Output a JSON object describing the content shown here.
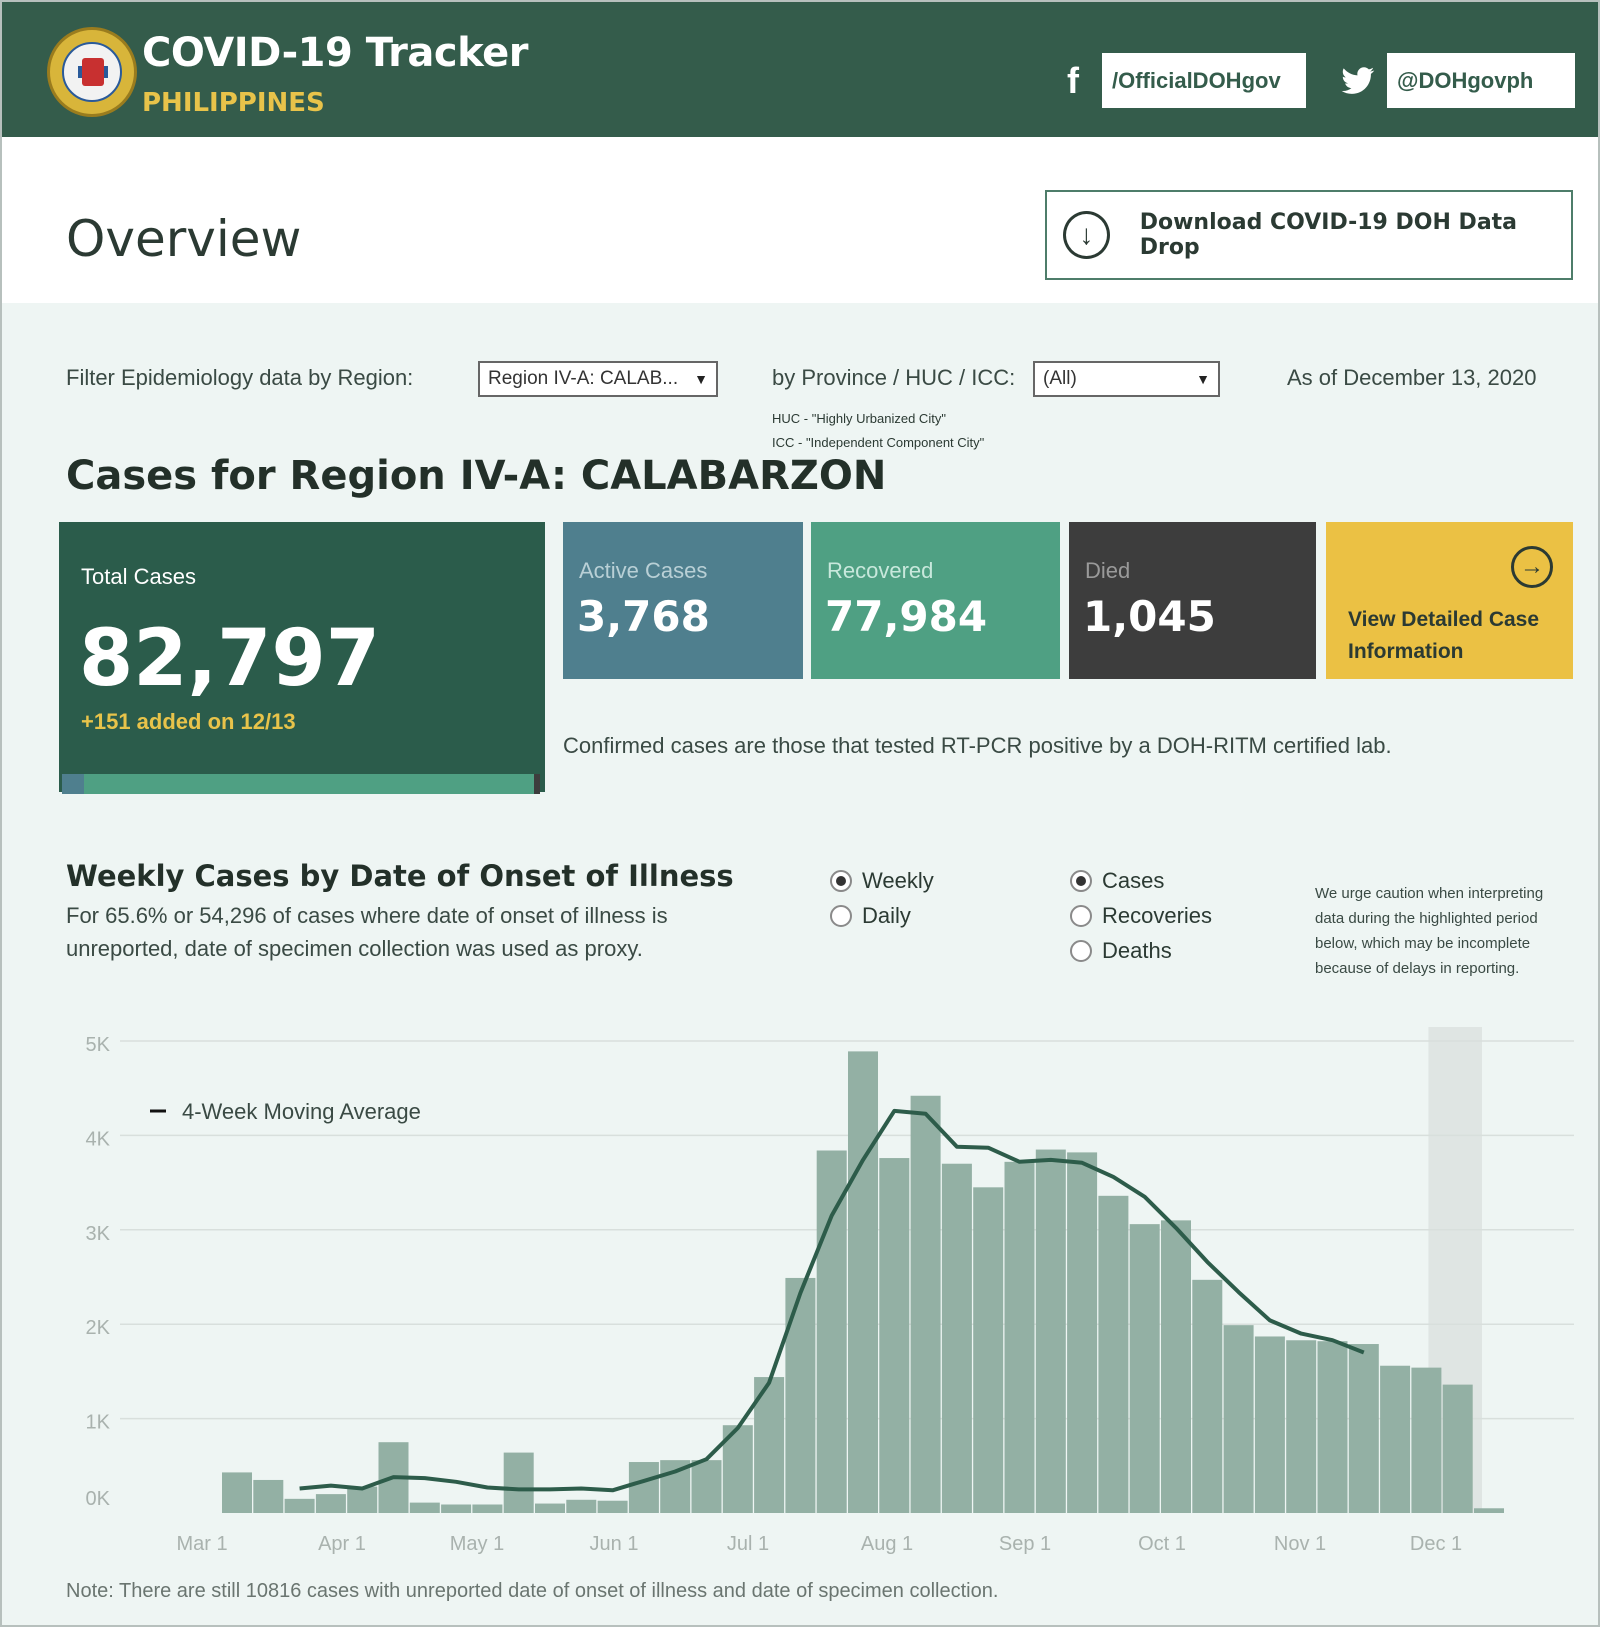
{
  "header": {
    "title": "COVID-19 Tracker",
    "subtitle": "PHILIPPINES",
    "facebook_label": "/OfficialDOHgov",
    "twitter_label": "@DOHgovph"
  },
  "overview": {
    "title": "Overview",
    "download_label": "Download COVID-19 DOH Data Drop"
  },
  "filters": {
    "region_label": "Filter Epidemiology data by Region:",
    "region_value": "Region IV-A: CALAB...",
    "province_label": "by Province / HUC / ICC:",
    "province_value": "(All)",
    "huc_note": "HUC - \"Highly Urbanized City\"",
    "icc_note": "ICC - \"Independent Component City\"",
    "as_of": "As of December 13, 2020"
  },
  "cases": {
    "title": "Cases for Region IV-A: CALABARZON",
    "total_label": "Total Cases",
    "total_value": "82,797",
    "added_text": "+151 added on 12/13",
    "active_label": "Active Cases",
    "active_value": "3,768",
    "recovered_label": "Recovered",
    "recovered_value": "77,984",
    "died_label": "Died",
    "died_value": "1,045",
    "view_label": "View Detailed Case Information",
    "confirmed_note": "Confirmed cases are those that tested RT-PCR positive by a DOH-RITM certified lab.",
    "bar_fractions": {
      "active": 0.0455,
      "recovered": 0.9419,
      "died": 0.0126
    }
  },
  "weekly": {
    "title": "Weekly Cases by Date of Onset of Illness",
    "subtitle": "For 65.6% or 54,296 of cases where date of onset of illness is unreported, date of specimen collection was used as proxy.",
    "radio_weekly": "Weekly",
    "radio_daily": "Daily",
    "radio_cases": "Cases",
    "radio_recoveries": "Recoveries",
    "radio_deaths": "Deaths",
    "selected_period": "Weekly",
    "selected_metric": "Cases",
    "caution": "We urge caution when interpreting data during the highlighted period below, which may be incomplete because of delays in reporting.",
    "footnote": "Note: There are still 10816 cases with unreported date of onset of illness and date of specimen collection."
  },
  "colors": {
    "header_bg": "#345c4b",
    "accent_yellow": "#e8c34a",
    "bar": "#93b0a4",
    "line": "#2d5c4a",
    "highlight": "#dfe5e3"
  },
  "chart_data": {
    "type": "bar",
    "title": "Weekly Cases by Date of Onset of Illness",
    "ylim": [
      0,
      5000
    ],
    "yticks": [
      0,
      1000,
      2000,
      3000,
      4000,
      5000
    ],
    "ytick_labels": [
      "0K",
      "1K",
      "2K",
      "3K",
      "4K",
      "5K"
    ],
    "xtick_labels": [
      "Mar 1",
      "Apr 1",
      "May 1",
      "Jun 1",
      "Jul 1",
      "Aug 1",
      "Sep 1",
      "Oct 1",
      "Nov 1",
      "Dec 1"
    ],
    "grid": true,
    "legend": {
      "label": "4-Week Moving Average",
      "placement": "top-left"
    },
    "series": [
      {
        "name": "",
        "type": "bar",
        "values": [
          430,
          350,
          150,
          200,
          280,
          750,
          110,
          90,
          90,
          640,
          100,
          140,
          130,
          540,
          560,
          560,
          930,
          1440,
          2490,
          3840,
          4890,
          3760,
          4420,
          3700,
          3450,
          3720,
          3850,
          3820,
          3360,
          3060,
          3100,
          2470,
          1990,
          1870,
          1830,
          1820,
          1790,
          1560,
          1540,
          1360,
          50
        ]
      },
      {
        "name": "4-Week Moving Average",
        "type": "line",
        "values": [
          null,
          null,
          260,
          290,
          260,
          380,
          370,
          330,
          270,
          250,
          250,
          260,
          240,
          340,
          440,
          570,
          900,
          1380,
          2330,
          3150,
          3740,
          4260,
          4230,
          3880,
          3870,
          3720,
          3740,
          3710,
          3560,
          3350,
          3020,
          2660,
          2340,
          2040,
          1900,
          1830,
          1700,
          null,
          null,
          null,
          null
        ]
      }
    ],
    "highlighted_weeks": [
      38,
      40
    ]
  }
}
